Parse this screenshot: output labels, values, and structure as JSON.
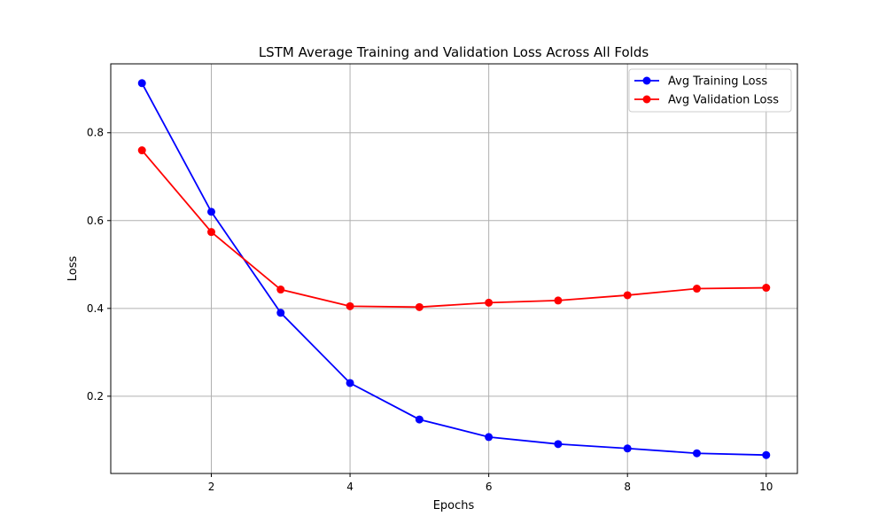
{
  "chart_data": {
    "type": "line",
    "title": "LSTM Average Training and Validation Loss Across All Folds",
    "xlabel": "Epochs",
    "ylabel": "Loss",
    "x": [
      1,
      2,
      3,
      4,
      5,
      6,
      7,
      8,
      9,
      10
    ],
    "xticks": [
      2,
      4,
      6,
      8,
      10
    ],
    "yticks": [
      0.2,
      0.4,
      0.6,
      0.8
    ],
    "xlim": [
      0.55,
      10.45
    ],
    "ylim": [
      0.024,
      0.957
    ],
    "grid": true,
    "legend_position": "top-right",
    "series": [
      {
        "name": "Avg Training Loss",
        "color": "#0000ff",
        "marker": "circle",
        "values": [
          0.913,
          0.62,
          0.39,
          0.23,
          0.147,
          0.107,
          0.091,
          0.081,
          0.07,
          0.066
        ]
      },
      {
        "name": "Avg Validation Loss",
        "color": "#ff0000",
        "marker": "circle",
        "values": [
          0.76,
          0.574,
          0.443,
          0.405,
          0.403,
          0.413,
          0.418,
          0.43,
          0.445,
          0.447
        ]
      }
    ]
  }
}
